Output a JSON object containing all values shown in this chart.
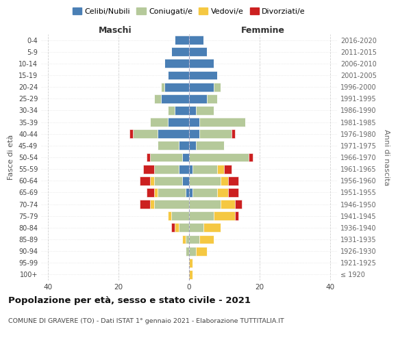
{
  "age_groups": [
    "100+",
    "95-99",
    "90-94",
    "85-89",
    "80-84",
    "75-79",
    "70-74",
    "65-69",
    "60-64",
    "55-59",
    "50-54",
    "45-49",
    "40-44",
    "35-39",
    "30-34",
    "25-29",
    "20-24",
    "15-19",
    "10-14",
    "5-9",
    "0-4"
  ],
  "birth_years": [
    "≤ 1920",
    "1921-1925",
    "1926-1930",
    "1931-1935",
    "1936-1940",
    "1941-1945",
    "1946-1950",
    "1951-1955",
    "1956-1960",
    "1961-1965",
    "1966-1970",
    "1971-1975",
    "1976-1980",
    "1981-1985",
    "1986-1990",
    "1991-1995",
    "1996-2000",
    "2001-2005",
    "2006-2010",
    "2011-2015",
    "2016-2020"
  ],
  "colors": {
    "celibi": "#4a7fb5",
    "coniugati": "#b5c99a",
    "vedovi": "#f5c842",
    "divorziati": "#cc2020"
  },
  "maschi": {
    "celibi": [
      0,
      0,
      0,
      0,
      0,
      0,
      0,
      1,
      2,
      3,
      2,
      3,
      9,
      6,
      4,
      8,
      7,
      6,
      7,
      5,
      4
    ],
    "coniugati": [
      0,
      0,
      1,
      1,
      3,
      5,
      10,
      8,
      8,
      7,
      9,
      6,
      7,
      5,
      2,
      2,
      1,
      0,
      0,
      0,
      0
    ],
    "vedovi": [
      0,
      0,
      0,
      1,
      1,
      1,
      1,
      1,
      1,
      0,
      0,
      0,
      0,
      0,
      0,
      0,
      0,
      0,
      0,
      0,
      0
    ],
    "divorziati": [
      0,
      0,
      0,
      0,
      1,
      0,
      3,
      2,
      3,
      3,
      1,
      0,
      1,
      0,
      0,
      0,
      0,
      0,
      0,
      0,
      0
    ]
  },
  "femmine": {
    "celibi": [
      0,
      0,
      0,
      0,
      0,
      0,
      0,
      1,
      0,
      1,
      0,
      2,
      3,
      3,
      2,
      5,
      7,
      8,
      7,
      5,
      4
    ],
    "coniugati": [
      0,
      0,
      2,
      3,
      4,
      7,
      9,
      7,
      9,
      7,
      17,
      8,
      9,
      13,
      5,
      3,
      2,
      0,
      0,
      0,
      0
    ],
    "vedovi": [
      1,
      1,
      3,
      4,
      5,
      6,
      4,
      3,
      2,
      2,
      0,
      0,
      0,
      0,
      0,
      0,
      0,
      0,
      0,
      0,
      0
    ],
    "divorziati": [
      0,
      0,
      0,
      0,
      0,
      1,
      2,
      3,
      3,
      2,
      1,
      0,
      1,
      0,
      0,
      0,
      0,
      0,
      0,
      0,
      0
    ]
  },
  "xlim": 42,
  "title": "Popolazione per età, sesso e stato civile - 2021",
  "subtitle": "COMUNE DI GRAVERE (TO) - Dati ISTAT 1° gennaio 2021 - Elaborazione TUTTITALIA.IT",
  "xlabel_left": "Maschi",
  "xlabel_right": "Femmine",
  "ylabel_left": "Fasce di età",
  "ylabel_right": "Anni di nascita",
  "legend_labels": [
    "Celibi/Nubili",
    "Coniugati/e",
    "Vedovi/e",
    "Divorziati/e"
  ],
  "background_color": "#ffffff",
  "grid_color": "#cccccc"
}
